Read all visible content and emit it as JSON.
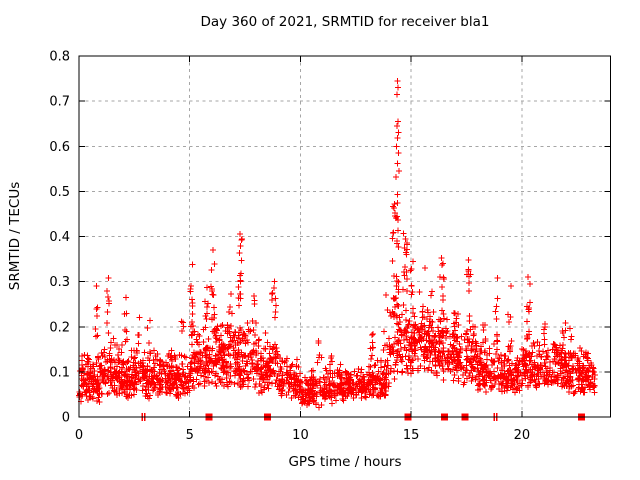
{
  "chart_data": {
    "type": "scatter",
    "title": "Day 360 of 2021, SRMTID for receiver bla1",
    "xlabel": "GPS time / hours",
    "ylabel": "SRMTID / TECUs",
    "xlim": [
      0,
      24
    ],
    "ylim": [
      0,
      0.8
    ],
    "xticks": [
      0,
      5,
      10,
      15,
      20
    ],
    "yticks": [
      0,
      0.1,
      0.2,
      0.3,
      0.4,
      0.5,
      0.6,
      0.7,
      0.8
    ],
    "grid": true,
    "legend": null,
    "marker": "plus",
    "point_color": "#ff0000",
    "grid_color": "#a6a6a6",
    "axis_color": "#000000",
    "seed": 1337,
    "bins_format": "[hour_start, hour_end, n_points, v_low, v_high]",
    "density_bins": [
      [
        0,
        1,
        120,
        0.03,
        0.16
      ],
      [
        1,
        2,
        112,
        0.04,
        0.18
      ],
      [
        2,
        3,
        108,
        0.04,
        0.16
      ],
      [
        3,
        4,
        102,
        0.04,
        0.15
      ],
      [
        4,
        5,
        105,
        0.04,
        0.16
      ],
      [
        5,
        6,
        112,
        0.06,
        0.21
      ],
      [
        6,
        7,
        115,
        0.06,
        0.23
      ],
      [
        7,
        8,
        112,
        0.06,
        0.23
      ],
      [
        8,
        9,
        105,
        0.05,
        0.19
      ],
      [
        9,
        10,
        98,
        0.04,
        0.14
      ],
      [
        10,
        11,
        95,
        0.02,
        0.11
      ],
      [
        11,
        12,
        98,
        0.03,
        0.12
      ],
      [
        12,
        13,
        98,
        0.04,
        0.11
      ],
      [
        13,
        14,
        100,
        0.04,
        0.14
      ],
      [
        14,
        15,
        95,
        0.08,
        0.26
      ],
      [
        15,
        16,
        108,
        0.1,
        0.26
      ],
      [
        16,
        17,
        108,
        0.08,
        0.24
      ],
      [
        17,
        18,
        108,
        0.07,
        0.22
      ],
      [
        18,
        19,
        100,
        0.05,
        0.17
      ],
      [
        19,
        20,
        100,
        0.05,
        0.16
      ],
      [
        20,
        21,
        100,
        0.06,
        0.18
      ],
      [
        21,
        22,
        102,
        0.06,
        0.18
      ],
      [
        22,
        23,
        108,
        0.05,
        0.17
      ],
      [
        23,
        23.3,
        32,
        0.05,
        0.13
      ]
    ],
    "columns_format": "[hour_center, hour_width, v_low, v_high, n_points]",
    "columns": [
      [
        0.78,
        0.1,
        0.16,
        0.26,
        6
      ],
      [
        1.32,
        0.1,
        0.18,
        0.29,
        7
      ],
      [
        2.1,
        0.12,
        0.14,
        0.24,
        6
      ],
      [
        2.65,
        0.15,
        0.14,
        0.22,
        6
      ],
      [
        3.15,
        0.12,
        0.13,
        0.22,
        5
      ],
      [
        4.7,
        0.15,
        0.13,
        0.22,
        6
      ],
      [
        5.1,
        0.15,
        0.2,
        0.33,
        10
      ],
      [
        5.75,
        0.15,
        0.18,
        0.29,
        8
      ],
      [
        6.05,
        0.2,
        0.2,
        0.36,
        12
      ],
      [
        6.85,
        0.15,
        0.18,
        0.29,
        7
      ],
      [
        7.28,
        0.18,
        0.24,
        0.4,
        14
      ],
      [
        7.9,
        0.15,
        0.16,
        0.27,
        7
      ],
      [
        8.8,
        0.2,
        0.16,
        0.29,
        9
      ],
      [
        10.9,
        0.25,
        0.1,
        0.17,
        6
      ],
      [
        11.4,
        0.2,
        0.1,
        0.16,
        5
      ],
      [
        13.2,
        0.2,
        0.11,
        0.19,
        7
      ],
      [
        13.85,
        0.2,
        0.12,
        0.24,
        8
      ],
      [
        14.3,
        0.28,
        0.18,
        0.52,
        36
      ],
      [
        14.72,
        0.22,
        0.22,
        0.46,
        16
      ],
      [
        15.05,
        0.2,
        0.15,
        0.35,
        12
      ],
      [
        15.45,
        0.2,
        0.12,
        0.3,
        9
      ],
      [
        15.95,
        0.15,
        0.15,
        0.28,
        7
      ],
      [
        16.4,
        0.2,
        0.18,
        0.34,
        11
      ],
      [
        17.05,
        0.15,
        0.15,
        0.26,
        6
      ],
      [
        17.6,
        0.18,
        0.18,
        0.34,
        10
      ],
      [
        18.3,
        0.15,
        0.12,
        0.22,
        6
      ],
      [
        18.85,
        0.18,
        0.16,
        0.28,
        8
      ],
      [
        19.45,
        0.2,
        0.14,
        0.25,
        8
      ],
      [
        20.3,
        0.2,
        0.16,
        0.3,
        10
      ],
      [
        21.05,
        0.15,
        0.13,
        0.21,
        6
      ],
      [
        21.9,
        0.2,
        0.11,
        0.21,
        8
      ],
      [
        22.25,
        0.25,
        0.1,
        0.2,
        9
      ]
    ],
    "outliers_format": "[hour, value]",
    "outliers": [
      [
        14.38,
        0.745
      ],
      [
        14.41,
        0.73
      ],
      [
        14.36,
        0.715
      ],
      [
        14.4,
        0.655
      ],
      [
        14.37,
        0.645
      ],
      [
        14.43,
        0.63
      ],
      [
        14.39,
        0.618
      ],
      [
        14.34,
        0.6
      ],
      [
        14.42,
        0.585
      ],
      [
        14.38,
        0.562
      ],
      [
        14.45,
        0.545
      ],
      [
        14.31,
        0.532
      ],
      [
        7.28,
        0.405
      ],
      [
        7.34,
        0.392
      ],
      [
        6.06,
        0.37
      ],
      [
        5.12,
        0.338
      ],
      [
        16.38,
        0.352
      ],
      [
        16.44,
        0.34
      ],
      [
        17.58,
        0.348
      ],
      [
        15.63,
        0.33
      ],
      [
        15.08,
        0.345
      ],
      [
        1.33,
        0.308
      ],
      [
        0.79,
        0.29
      ],
      [
        8.82,
        0.3
      ],
      [
        18.9,
        0.308
      ],
      [
        19.5,
        0.29
      ],
      [
        20.28,
        0.31
      ],
      [
        20.36,
        0.295
      ],
      [
        13.87,
        0.27
      ],
      [
        2.12,
        0.265
      ]
    ],
    "bottom_squares_hours": [
      5.87,
      8.52,
      14.85,
      16.5,
      17.42,
      22.68
    ],
    "bottom_tick_pairs_hours": [
      2.85,
      2.97,
      18.74,
      18.86
    ]
  }
}
